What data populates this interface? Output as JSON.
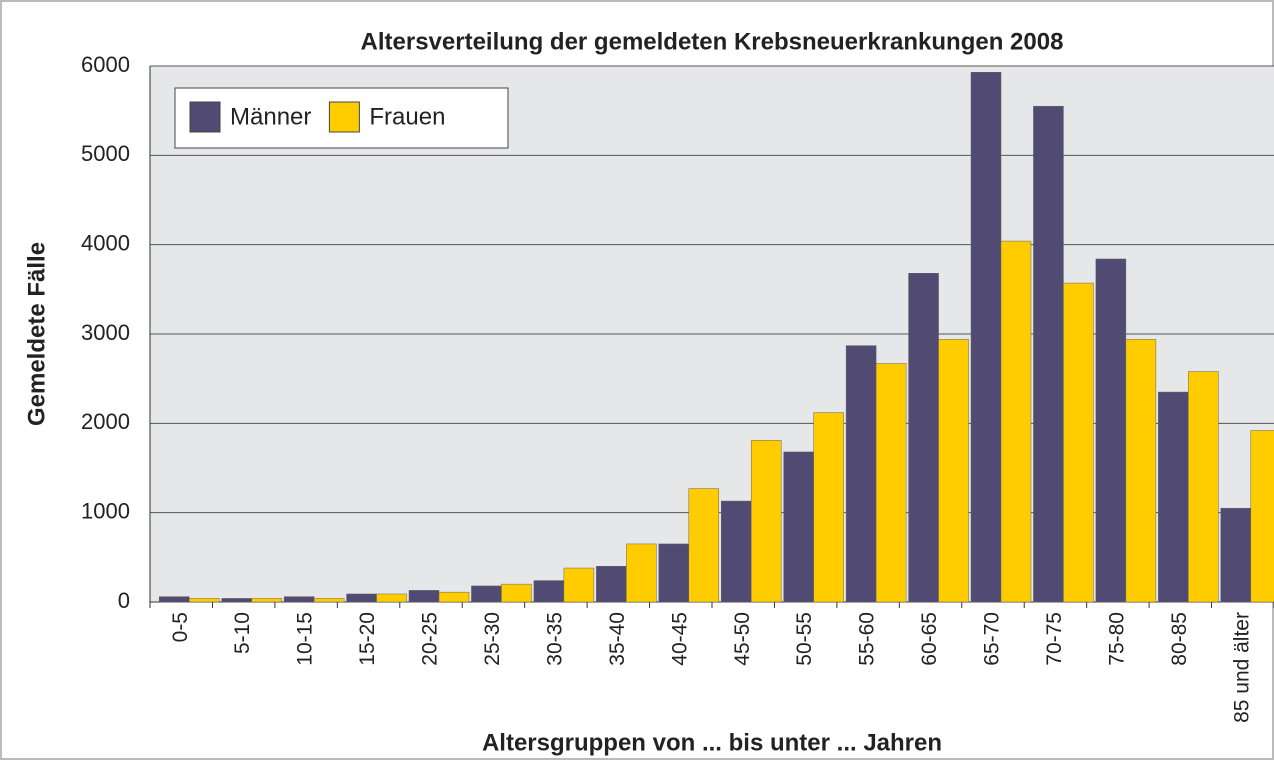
{
  "chart_data": {
    "type": "bar",
    "title": "Altersverteilung der gemeldeten Krebsneuerkrankungen 2008",
    "x_label": "Altersgruppen von ... bis unter ... Jahren",
    "y_label": "Gemeldete Fälle",
    "categories": [
      "0-5",
      "5-10",
      "10-15",
      "15-20",
      "20-25",
      "25-30",
      "30-35",
      "35-40",
      "40-45",
      "45-50",
      "50-55",
      "55-60",
      "60-65",
      "65-70",
      "70-75",
      "75-80",
      "80-85",
      "85 und älter"
    ],
    "series": [
      {
        "name": "Männer",
        "color": "#514a72",
        "values": [
          60,
          40,
          60,
          90,
          130,
          180,
          240,
          400,
          650,
          1130,
          1680,
          2870,
          3680,
          5930,
          5550,
          3840,
          2350,
          1050
        ]
      },
      {
        "name": "Frauen",
        "color": "#ffcc00",
        "values": [
          40,
          40,
          40,
          90,
          110,
          200,
          380,
          650,
          1270,
          1810,
          2120,
          2670,
          2940,
          4040,
          3570,
          2940,
          2580,
          1920
        ]
      }
    ],
    "ylim": [
      0,
      6000
    ],
    "yticks": [
      0,
      1000,
      2000,
      3000,
      4000,
      5000,
      6000
    ],
    "grid": true,
    "legend": "top-left"
  }
}
